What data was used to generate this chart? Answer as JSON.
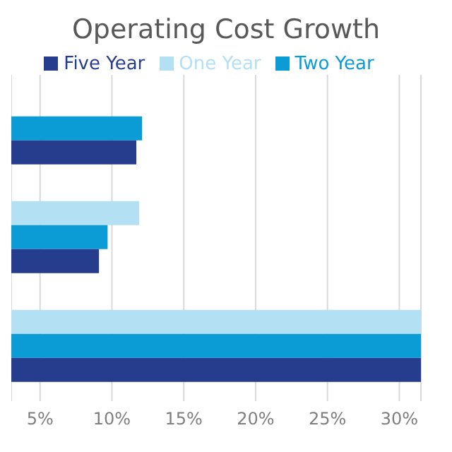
{
  "chart_data": {
    "type": "bar",
    "orientation": "horizontal",
    "title": "Operating Cost Growth",
    "categories": [
      null,
      null,
      null
    ],
    "series": [
      {
        "name": "One Year",
        "color": "#b3e0f2",
        "values": [
          null,
          11.9,
          31.5
        ]
      },
      {
        "name": "Two Year",
        "color": "#0b9cd6",
        "values": [
          12.1,
          9.7,
          31.5
        ]
      },
      {
        "name": "Five Year",
        "color": "#253d8c",
        "values": [
          11.7,
          9.1,
          31.5
        ]
      }
    ],
    "xlim": [
      3,
      31.5
    ],
    "xticks": [
      {
        "value": 5,
        "label": "5%"
      },
      {
        "value": 10,
        "label": "10%"
      },
      {
        "value": 15,
        "label": "15%"
      },
      {
        "value": 20,
        "label": "20%"
      },
      {
        "value": 25,
        "label": "25%"
      },
      {
        "value": 30,
        "label": "30%"
      }
    ],
    "grid": "x",
    "legend": "top",
    "tick_labels": "x"
  }
}
